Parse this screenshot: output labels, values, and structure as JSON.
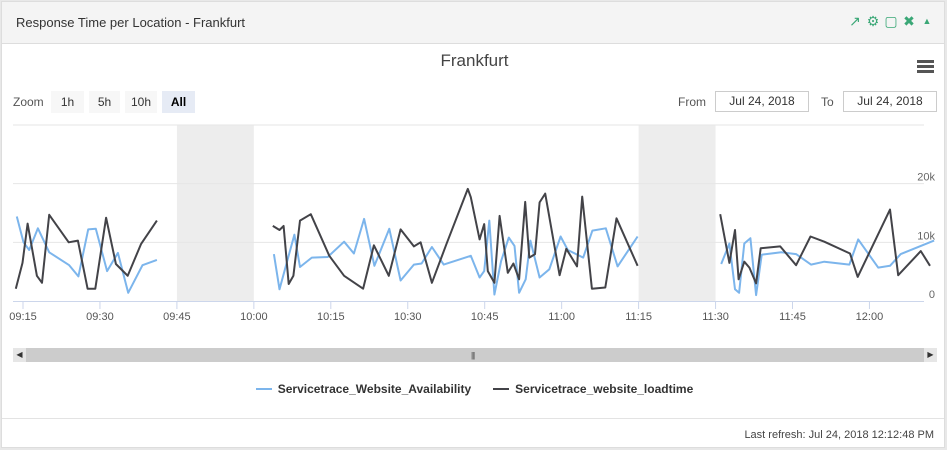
{
  "header": {
    "title": "Response Time per Location - Frankfurt",
    "icons": [
      "external-link-icon",
      "gear-icon",
      "maximize-icon",
      "close-icon",
      "collapse-icon"
    ],
    "icon_color": "#3aa776"
  },
  "chart_toolbar": {
    "zoom_label": "Zoom",
    "zoom_buttons": [
      "1h",
      "5h",
      "10h",
      "All"
    ],
    "active_zoom": "All",
    "from_label": "From",
    "from_value": "Jul 24, 2018",
    "to_label": "To",
    "to_value": "Jul 24, 2018"
  },
  "footer": {
    "last_refresh": "Last refresh: Jul 24, 2018 12:12:48 PM"
  },
  "chart_data": {
    "type": "line",
    "title": "Frankfurt",
    "x_ticks": [
      "09:15",
      "09:30",
      "09:45",
      "10:00",
      "10:15",
      "10:30",
      "10:45",
      "11:00",
      "11:15",
      "11:30",
      "11:45",
      "12:00"
    ],
    "y_ticks": [
      "0",
      "10k",
      "20k"
    ],
    "ylim": [
      0,
      30000
    ],
    "grid": true,
    "legend": "bottom",
    "no_data_bands": [
      [
        "09:45",
        "10:00"
      ],
      [
        "11:15",
        "11:30"
      ]
    ],
    "series": [
      {
        "name": "Servicetrace_Website_Availability",
        "color": "#7cb5ec",
        "segments": [
          [
            [
              "09:13:48",
              14400
            ],
            [
              "09:15:06",
              10000
            ],
            [
              "09:16:12",
              8700
            ],
            [
              "09:17:54",
              12400
            ],
            [
              "09:20:06",
              8300
            ],
            [
              "09:24:00",
              6100
            ],
            [
              "09:25:48",
              4200
            ],
            [
              "09:27:42",
              12200
            ],
            [
              "09:29:12",
              12300
            ],
            [
              "09:31:24",
              5100
            ],
            [
              "09:33:30",
              8200
            ],
            [
              "09:35:30",
              1400
            ],
            [
              "09:38:18",
              6100
            ],
            [
              "09:41:06",
              7000
            ]
          ],
          [
            [
              "10:03:54",
              8000
            ],
            [
              "10:05:00",
              2000
            ],
            [
              "10:07:54",
              11300
            ],
            [
              "10:09:00",
              5800
            ],
            [
              "10:11:18",
              7400
            ],
            [
              "10:14:24",
              7500
            ],
            [
              "10:17:36",
              10100
            ],
            [
              "10:19:30",
              8100
            ],
            [
              "10:21:30",
              14000
            ],
            [
              "10:23:30",
              6000
            ],
            [
              "10:26:24",
              12300
            ],
            [
              "10:28:36",
              3500
            ],
            [
              "10:31:12",
              6200
            ],
            [
              "10:32:42",
              6400
            ],
            [
              "10:34:42",
              9200
            ],
            [
              "10:37:00",
              6200
            ],
            [
              "10:42:18",
              7700
            ],
            [
              "10:44:00",
              4000
            ],
            [
              "10:44:54",
              5100
            ],
            [
              "10:45:54",
              13700
            ],
            [
              "10:46:54",
              1100
            ],
            [
              "10:48:12",
              6800
            ],
            [
              "10:49:42",
              10800
            ],
            [
              "10:50:48",
              9400
            ],
            [
              "10:51:42",
              1400
            ],
            [
              "10:53:00",
              3700
            ],
            [
              "10:53:54",
              10300
            ],
            [
              "10:55:42",
              4000
            ],
            [
              "10:57:36",
              5400
            ],
            [
              "10:59:48",
              11000
            ],
            [
              "11:01:12",
              8700
            ],
            [
              "11:04:12",
              7400
            ],
            [
              "11:06:00",
              12000
            ],
            [
              "11:08:36",
              12400
            ],
            [
              "11:10:54",
              5900
            ],
            [
              "11:14:48",
              11000
            ]
          ],
          [
            [
              "11:31:06",
              6300
            ],
            [
              "11:32:42",
              9800
            ],
            [
              "11:33:48",
              2000
            ],
            [
              "11:34:36",
              1400
            ],
            [
              "11:35:36",
              9800
            ],
            [
              "11:36:48",
              10700
            ],
            [
              "11:37:54",
              1000
            ],
            [
              "11:39:00",
              7900
            ],
            [
              "11:42:48",
              8300
            ],
            [
              "11:45:42",
              8000
            ],
            [
              "11:48:36",
              6200
            ],
            [
              "11:51:12",
              6700
            ],
            [
              "11:56:06",
              6200
            ],
            [
              "11:57:48",
              10500
            ],
            [
              "12:01:42",
              5700
            ],
            [
              "12:04:00",
              6000
            ],
            [
              "12:06:06",
              8000
            ],
            [
              "12:12:36",
              10300
            ]
          ]
        ]
      },
      {
        "name": "Servicetrace_website_loadtime",
        "color": "#434348",
        "segments": [
          [
            [
              "09:13:36",
              2100
            ],
            [
              "09:14:54",
              6500
            ],
            [
              "09:15:54",
              13200
            ],
            [
              "09:17:42",
              4300
            ],
            [
              "09:18:42",
              3100
            ],
            [
              "09:20:06",
              14700
            ],
            [
              "09:23:54",
              10000
            ],
            [
              "09:25:42",
              10300
            ],
            [
              "09:27:36",
              2100
            ],
            [
              "09:29:06",
              2100
            ],
            [
              "09:31:12",
              14200
            ],
            [
              "09:33:06",
              6300
            ],
            [
              "09:35:24",
              4300
            ],
            [
              "09:38:00",
              9700
            ],
            [
              "09:41:06",
              13700
            ]
          ],
          [
            [
              "10:03:42",
              12800
            ],
            [
              "10:05:00",
              12100
            ],
            [
              "10:05:48",
              12800
            ],
            [
              "10:06:48",
              2900
            ],
            [
              "10:07:42",
              4300
            ],
            [
              "10:09:00",
              13700
            ],
            [
              "10:11:06",
              14800
            ],
            [
              "10:14:42",
              7700
            ],
            [
              "10:17:36",
              4300
            ],
            [
              "10:21:18",
              2100
            ],
            [
              "10:23:24",
              9500
            ],
            [
              "10:26:18",
              4300
            ],
            [
              "10:28:36",
              12200
            ],
            [
              "10:31:12",
              9300
            ],
            [
              "10:32:30",
              10000
            ],
            [
              "10:34:42",
              3100
            ],
            [
              "10:37:30",
              9600
            ],
            [
              "10:41:42",
              19100
            ],
            [
              "10:42:18",
              17700
            ],
            [
              "10:44:00",
              10500
            ],
            [
              "10:44:54",
              13100
            ],
            [
              "10:45:36",
              5100
            ],
            [
              "10:46:54",
              3100
            ],
            [
              "10:47:54",
              14500
            ],
            [
              "10:49:30",
              4800
            ],
            [
              "10:50:36",
              6400
            ],
            [
              "10:51:42",
              3700
            ],
            [
              "10:52:54",
              16900
            ],
            [
              "10:53:42",
              7400
            ],
            [
              "10:54:48",
              8000
            ],
            [
              "10:55:42",
              16800
            ],
            [
              "10:56:48",
              18300
            ],
            [
              "10:59:36",
              4400
            ],
            [
              "11:00:54",
              8900
            ],
            [
              "11:03:00",
              5900
            ],
            [
              "11:04:00",
              17800
            ],
            [
              "11:05:54",
              2100
            ],
            [
              "11:08:30",
              2300
            ],
            [
              "11:10:42",
              14100
            ],
            [
              "11:14:48",
              6000
            ]
          ],
          [
            [
              "11:30:54",
              14800
            ],
            [
              "11:32:42",
              6500
            ],
            [
              "11:33:48",
              12100
            ],
            [
              "11:34:30",
              3700
            ],
            [
              "11:35:36",
              6700
            ],
            [
              "11:36:36",
              5700
            ],
            [
              "11:37:54",
              3000
            ],
            [
              "11:38:48",
              9000
            ],
            [
              "11:42:36",
              9300
            ],
            [
              "11:45:42",
              6100
            ],
            [
              "11:48:30",
              11000
            ],
            [
              "11:51:12",
              10100
            ],
            [
              "11:56:12",
              8100
            ],
            [
              "11:57:42",
              4100
            ],
            [
              "12:04:00",
              15600
            ],
            [
              "12:05:36",
              4400
            ],
            [
              "12:10:00",
              8500
            ],
            [
              "12:11:48",
              6000
            ]
          ]
        ]
      }
    ]
  }
}
